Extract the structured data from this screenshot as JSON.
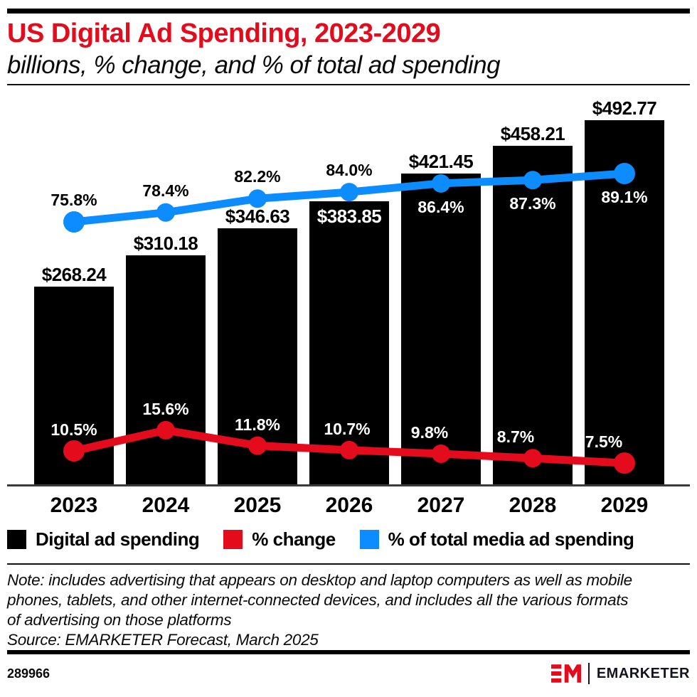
{
  "header": {
    "title": "US Digital Ad Spending, 2023-2029",
    "subtitle": "billions, % change, and % of total ad spending"
  },
  "chart_data": {
    "type": "bar",
    "title": "US Digital Ad Spending, 2023-2029",
    "subtitle": "billions, % change, and % of total ad spending",
    "categories": [
      "2023",
      "2024",
      "2025",
      "2026",
      "2027",
      "2028",
      "2029"
    ],
    "series": [
      {
        "name": "Digital ad spending",
        "kind": "bar",
        "unit": "USD billions",
        "color": "#000000",
        "values": [
          268.24,
          310.18,
          346.63,
          383.85,
          421.45,
          458.21,
          492.77
        ],
        "labels": [
          "$268.24",
          "$310.18",
          "$346.63",
          "$383.85",
          "$421.45",
          "$458.21",
          "$492.77"
        ]
      },
      {
        "name": "% change",
        "kind": "line",
        "unit": "%",
        "color": "#e30b1c",
        "values": [
          10.5,
          15.6,
          11.8,
          10.7,
          9.8,
          8.7,
          7.5
        ],
        "labels": [
          "10.5%",
          "15.6%",
          "11.8%",
          "10.7%",
          "9.8%",
          "8.7%",
          "7.5%"
        ]
      },
      {
        "name": "% of total media ad spending",
        "kind": "line",
        "unit": "%",
        "color": "#0d8cff",
        "values": [
          75.8,
          78.4,
          82.2,
          84.0,
          86.4,
          87.3,
          89.1
        ],
        "labels": [
          "75.8%",
          "78.4%",
          "82.2%",
          "84.0%",
          "86.4%",
          "87.3%",
          "89.1%"
        ]
      }
    ],
    "xlabel": "",
    "ylabel": "",
    "axes_visible": false,
    "grid": false,
    "data_labels": true,
    "legend_position": "bottom"
  },
  "legend": {
    "items": [
      {
        "label": "Digital ad spending",
        "color": "#000000"
      },
      {
        "label": "% change",
        "color": "#e30b1c"
      },
      {
        "label": "% of total media ad spending",
        "color": "#0d8cff"
      }
    ]
  },
  "notes": {
    "lines": [
      "Note: includes advertising that appears on desktop and laptop computers as well as mobile",
      "phones, tablets, and other internet-connected devices, and includes all the various formats",
      "of advertising on those platforms"
    ],
    "source": "Source: EMARKETER Forecast, March 2025"
  },
  "footer": {
    "chart_id": "289966",
    "brand": "EMARKETER"
  },
  "colors": {
    "red": "#e30b1c",
    "blue": "#0d8cff",
    "black": "#000000"
  }
}
